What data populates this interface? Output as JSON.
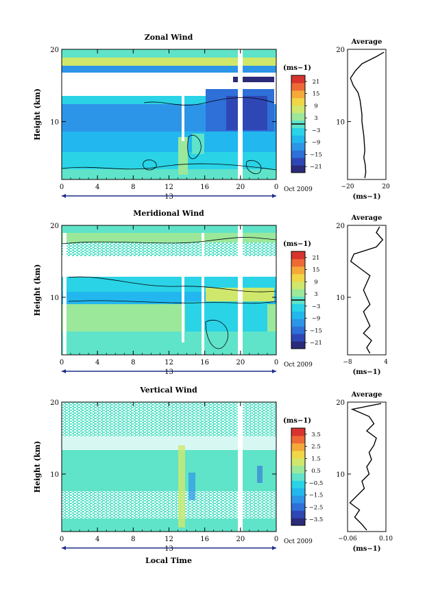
{
  "figure": {
    "x_axis_title": "Local Time",
    "date_label": "Oct 2009",
    "day_label": "13",
    "unit_label": "(ms",
    "unit_exp": "−1",
    "unit_close": ")",
    "height_label": "Height (km)",
    "average_title": "Average"
  },
  "chart_data": [
    {
      "type": "heatmap",
      "title": "Zonal Wind",
      "ylabel": "Height (km)",
      "xlabel": "Local Time",
      "x_ticks": [
        "0",
        "4",
        "8",
        "12",
        "16",
        "20",
        "0"
      ],
      "y_ticks": [
        "10",
        "20"
      ],
      "ylim": [
        2,
        20
      ],
      "xlim": [
        0,
        24
      ],
      "colorbar": {
        "unit": "(ms−1)",
        "ticks": [
          "21",
          "15",
          "9",
          "3",
          "−3",
          "−9",
          "−15",
          "−21"
        ],
        "range": [
          -24,
          24
        ],
        "contour_at": 0
      },
      "profile": {
        "title": "Average",
        "xlabel": "(ms−1)",
        "xlim": [
          -20,
          20
        ],
        "x_ticks": [
          "−20",
          "20"
        ],
        "y_ticks": [
          "10",
          "20"
        ],
        "points": [
          [
            -2,
            2.2
          ],
          [
            -1,
            3
          ],
          [
            -1.5,
            4
          ],
          [
            -3,
            5
          ],
          [
            -2,
            6
          ],
          [
            -2.5,
            7
          ],
          [
            -3,
            8
          ],
          [
            -4,
            9
          ],
          [
            -5,
            10
          ],
          [
            -5,
            11
          ],
          [
            -6,
            12
          ],
          [
            -7,
            13
          ],
          [
            -9,
            14
          ],
          [
            -14,
            15
          ],
          [
            -17,
            16
          ],
          [
            -12,
            17
          ],
          [
            -5,
            18
          ],
          [
            10,
            19
          ],
          [
            18,
            19.6
          ]
        ]
      },
      "blank_columns": [
        [
          13.6,
          14.0
        ],
        [
          20.0,
          20.5
        ]
      ]
    },
    {
      "type": "heatmap",
      "title": "Meridional Wind",
      "ylabel": "Height (km)",
      "xlabel": "Local Time",
      "x_ticks": [
        "0",
        "4",
        "8",
        "12",
        "16",
        "20",
        "0"
      ],
      "y_ticks": [
        "10",
        "20"
      ],
      "ylim": [
        2,
        20
      ],
      "xlim": [
        0,
        24
      ],
      "colorbar": {
        "unit": "(ms−1)",
        "ticks": [
          "21",
          "15",
          "9",
          "3",
          "−3",
          "−9",
          "−15",
          "−21"
        ],
        "range": [
          -24,
          24
        ],
        "contour_at": 0
      },
      "profile": {
        "title": "Average",
        "xlabel": "(ms−1)",
        "xlim": [
          -8,
          4
        ],
        "x_ticks": [
          "−8",
          "4"
        ],
        "y_ticks": [
          "10",
          "20"
        ],
        "points": [
          [
            -1,
            2.2
          ],
          [
            -2,
            3
          ],
          [
            -0.5,
            4
          ],
          [
            -3,
            5
          ],
          [
            -1,
            6
          ],
          [
            -2,
            7
          ],
          [
            -3,
            8
          ],
          [
            -1,
            9
          ],
          [
            -2,
            10
          ],
          [
            -3,
            11
          ],
          [
            -2,
            12
          ],
          [
            -1,
            13
          ],
          [
            -4,
            14
          ],
          [
            -7,
            15
          ],
          [
            -6,
            16
          ],
          [
            1,
            17
          ],
          [
            3,
            18
          ],
          [
            1,
            19
          ],
          [
            2,
            19.8
          ]
        ]
      },
      "blank_columns": [
        [
          0.2,
          0.6
        ],
        [
          13.6,
          14.0
        ],
        [
          15.7,
          16.1
        ],
        [
          20.0,
          20.5
        ]
      ]
    },
    {
      "type": "heatmap",
      "title": "Vertical Wind",
      "ylabel": "Height (km)",
      "xlabel": "Local Time",
      "x_ticks": [
        "0",
        "4",
        "8",
        "12",
        "16",
        "20",
        "0"
      ],
      "y_ticks": [
        "10",
        "20"
      ],
      "ylim": [
        2,
        20
      ],
      "xlim": [
        0,
        24
      ],
      "colorbar": {
        "unit": "(ms−1)",
        "ticks": [
          "3.5",
          "2.5",
          "1.5",
          "0.5",
          "−0.5",
          "−1.5",
          "−2.5",
          "−3.5"
        ],
        "range": [
          -4,
          4
        ],
        "contour_at": null
      },
      "profile": {
        "title": "Average",
        "xlabel": "(ms−1)",
        "xlim": [
          -0.06,
          0.1
        ],
        "x_ticks": [
          "−0.06",
          "0.10"
        ],
        "y_ticks": [
          "10",
          "20"
        ],
        "points": [
          [
            0.02,
            2.2
          ],
          [
            0.0,
            3
          ],
          [
            -0.03,
            4
          ],
          [
            -0.01,
            5
          ],
          [
            -0.05,
            6
          ],
          [
            -0.02,
            7
          ],
          [
            0.01,
            8
          ],
          [
            0.0,
            9
          ],
          [
            0.03,
            10
          ],
          [
            0.02,
            11
          ],
          [
            0.04,
            12
          ],
          [
            0.03,
            13
          ],
          [
            0.05,
            14
          ],
          [
            0.06,
            15
          ],
          [
            0.02,
            16
          ],
          [
            0.05,
            17
          ],
          [
            0.03,
            18
          ],
          [
            -0.04,
            19
          ],
          [
            0.08,
            19.8
          ]
        ]
      },
      "blank_columns": [
        [
          20.0,
          20.5
        ]
      ]
    }
  ],
  "colors": {
    "scale": [
      "#2b2b7a",
      "#2f47b5",
      "#2e6fd8",
      "#2d95e8",
      "#22b7ee",
      "#2ad3e6",
      "#5fe3c9",
      "#9be89b",
      "#cfe86c",
      "#f0d648",
      "#f4a93a",
      "#ee6a35",
      "#d8332e"
    ]
  }
}
